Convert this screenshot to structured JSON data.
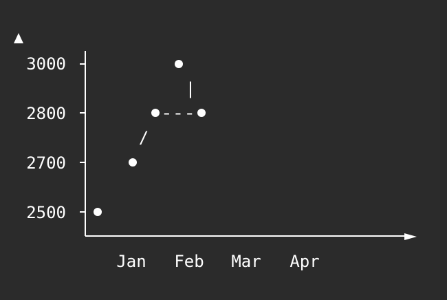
{
  "chart_data": {
    "type": "scatter",
    "style": "ascii",
    "title": "",
    "xlabel": "",
    "ylabel": "",
    "x_categories": [
      "Jan",
      "Feb",
      "Mar",
      "Apr"
    ],
    "y_ticks": [
      "3000",
      "2800",
      "2700",
      "2500"
    ],
    "points": [
      {
        "x": "early Jan",
        "y": 2500
      },
      {
        "x": "mid Jan",
        "y": 2700
      },
      {
        "x": "late Jan",
        "y": 2800
      },
      {
        "x": "early Feb",
        "y": 3000
      },
      {
        "x": "mid Feb",
        "y": 2800
      }
    ],
    "connectors": [
      "/",
      "---",
      "|"
    ],
    "grid": false,
    "legend": "none",
    "colors": {
      "background": "#2b2b2b",
      "foreground": "#ffffff"
    }
  }
}
